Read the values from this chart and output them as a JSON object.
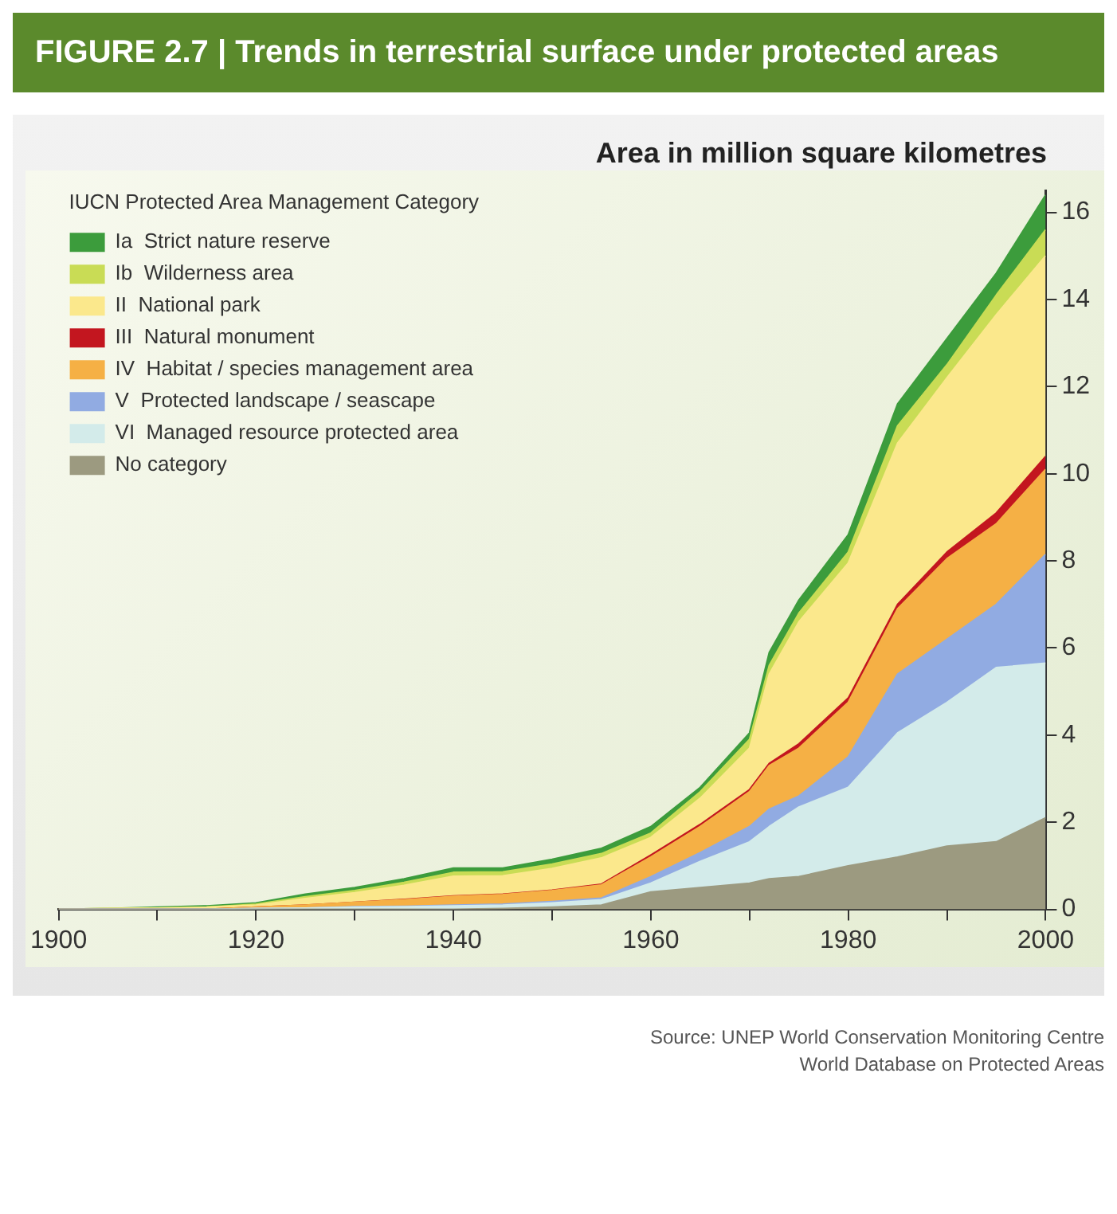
{
  "chart_data": {
    "type": "area",
    "title": "FIGURE 2.7 | Trends in terrestrial surface under protected areas",
    "ylabel": "Area in million square kilometres",
    "legend_title": "IUCN Protected Area Management Category",
    "annotations": [
      "Source: UNEP World Conservation Monitoring Centre",
      "World Database on Protected Areas"
    ],
    "x": [
      1900,
      1905,
      1910,
      1915,
      1920,
      1925,
      1930,
      1935,
      1940,
      1945,
      1950,
      1955,
      1960,
      1965,
      1970,
      1972,
      1975,
      1980,
      1985,
      1990,
      1995,
      2000
    ],
    "stacked": true,
    "legend": "top left",
    "marker": "none",
    "grid": false,
    "xlim": [
      1900,
      2000
    ],
    "xticks": [
      1900,
      {
        "value": 1910,
        "label": null
      },
      1920,
      {
        "value": 1930,
        "label": null
      },
      1940,
      {
        "value": 1950,
        "label": null
      },
      1960,
      {
        "value": 1970,
        "label": null
      },
      1980,
      {
        "value": 1990,
        "label": null
      },
      2000
    ],
    "ylim": [
      0,
      16.5
    ],
    "yticks": [
      0,
      2,
      4,
      6,
      8,
      10,
      12,
      14,
      16
    ],
    "series": [
      {
        "name": "No category",
        "color": "#9c9a80",
        "values": [
          0,
          0,
          0,
          0,
          0,
          0,
          0,
          0,
          0,
          0.02,
          0.05,
          0.1,
          0.4,
          0.5,
          0.6,
          0.7,
          0.75,
          1.0,
          1.2,
          1.45,
          1.55,
          2.1
        ]
      },
      {
        "name": "VI  Managed resource protected area",
        "color": "#d3ebea",
        "values": [
          0,
          0,
          0,
          0,
          0.02,
          0.03,
          0.05,
          0.06,
          0.08,
          0.08,
          0.1,
          0.12,
          0.2,
          0.6,
          0.95,
          1.2,
          1.6,
          1.8,
          2.85,
          3.3,
          4.0,
          3.55
        ]
      },
      {
        "name": "V  Protected landscape / seascape",
        "color": "#91abe2",
        "values": [
          0,
          0,
          0,
          0,
          0,
          0,
          0.01,
          0.01,
          0.02,
          0.02,
          0.03,
          0.04,
          0.15,
          0.2,
          0.35,
          0.4,
          0.25,
          0.7,
          1.35,
          1.45,
          1.45,
          2.5
        ]
      },
      {
        "name": "IV  Habitat / species management area",
        "color": "#f5b045",
        "values": [
          0,
          0,
          0,
          0,
          0.03,
          0.07,
          0.1,
          0.15,
          0.2,
          0.22,
          0.25,
          0.3,
          0.45,
          0.6,
          0.8,
          1.0,
          1.1,
          1.25,
          1.5,
          1.85,
          1.85,
          1.95
        ]
      },
      {
        "name": "III  Natural monument",
        "color": "#c3161f",
        "values": [
          0,
          0,
          0,
          0,
          0,
          0,
          0,
          0.01,
          0.01,
          0.01,
          0.01,
          0.02,
          0.05,
          0.05,
          0.05,
          0.05,
          0.1,
          0.1,
          0.1,
          0.15,
          0.25,
          0.3
        ]
      },
      {
        "name": "II  National park",
        "color": "#fbe88c",
        "values": [
          0,
          0.02,
          0.03,
          0.05,
          0.05,
          0.15,
          0.22,
          0.32,
          0.45,
          0.42,
          0.5,
          0.6,
          0.4,
          0.6,
          0.95,
          2.05,
          2.8,
          3.1,
          3.7,
          4.0,
          4.55,
          4.6
        ]
      },
      {
        "name": "Ib  Wilderness area",
        "color": "#c9dc55",
        "values": [
          0,
          0,
          0,
          0,
          0.02,
          0.04,
          0.05,
          0.07,
          0.09,
          0.09,
          0.1,
          0.1,
          0.1,
          0.15,
          0.2,
          0.2,
          0.2,
          0.25,
          0.4,
          0.3,
          0.45,
          0.6
        ]
      },
      {
        "name": "Ia  Strict nature reserve",
        "color": "#3c9c3c",
        "values": [
          0,
          0,
          0.02,
          0.03,
          0.03,
          0.06,
          0.07,
          0.08,
          0.1,
          0.09,
          0.11,
          0.12,
          0.15,
          0.1,
          0.15,
          0.3,
          0.3,
          0.4,
          0.5,
          0.6,
          0.5,
          0.8
        ]
      }
    ]
  }
}
